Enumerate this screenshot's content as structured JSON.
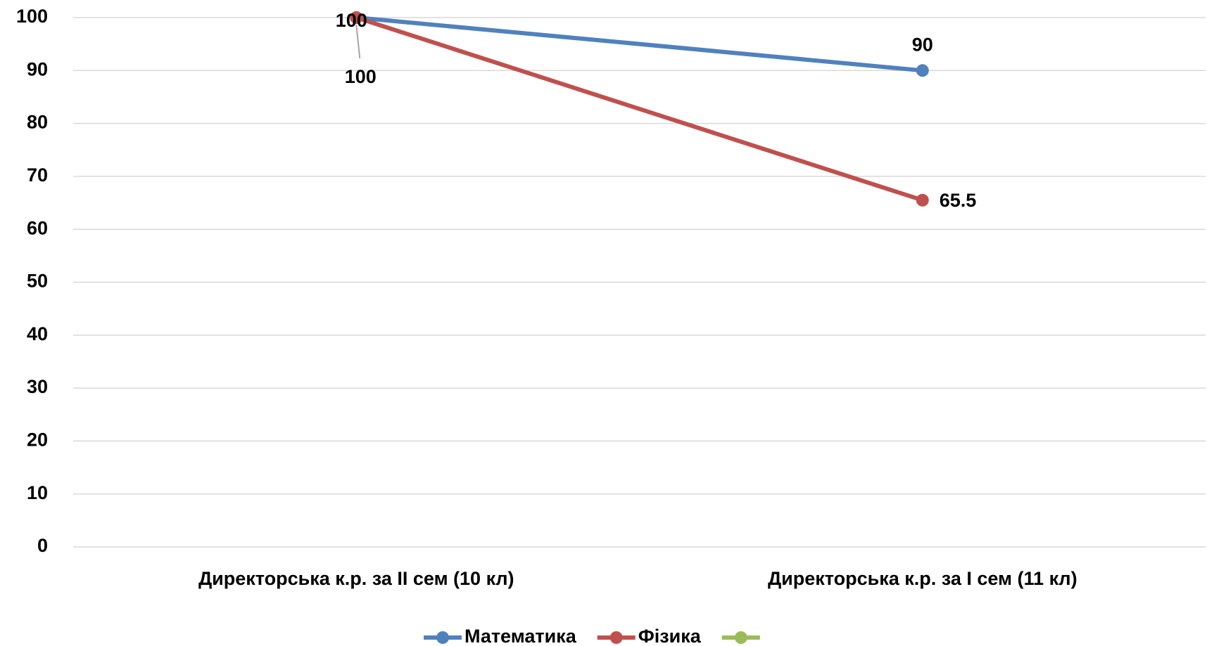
{
  "chart_data": {
    "type": "line",
    "categories": [
      "Директорська к.р. за II сем (10 кл)",
      "Директорська к.р. за I сем (11 кл)"
    ],
    "series": [
      {
        "name": "Математика",
        "color": "#4f81bd",
        "values": [
          100,
          90
        ]
      },
      {
        "name": "Фізика",
        "color": "#c0504d",
        "values": [
          100,
          65.5
        ]
      },
      {
        "name": null,
        "color": "#9bbb59",
        "values": [
          null,
          null
        ]
      }
    ],
    "ylim": [
      0,
      100
    ],
    "yticks": [
      0,
      10,
      20,
      30,
      40,
      50,
      60,
      70,
      80,
      90,
      100
    ],
    "grid": true,
    "legend": "bottom"
  }
}
